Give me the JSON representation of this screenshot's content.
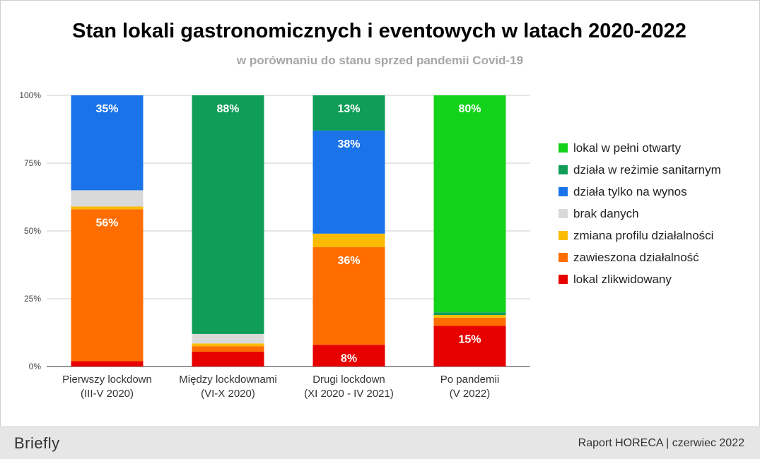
{
  "title": "Stan lokali gastronomicznych i eventowych w latach 2020-2022",
  "subtitle": "w porównaniu do stanu sprzed pandemii Covid-19",
  "footer": {
    "brand": "Briefly",
    "report": "Raport HORECA | czerwiec 2022"
  },
  "chart_data": {
    "type": "bar",
    "stacked": true,
    "title": "Stan lokali gastronomicznych i eventowych w latach 2020-2022",
    "subtitle": "w porównaniu do stanu sprzed pandemii Covid-19",
    "categories": [
      [
        "Pierwszy lockdown",
        "(III-V 2020)"
      ],
      [
        "Między lockdownami",
        "(VI-X 2020)"
      ],
      [
        "Drugi lockdown",
        "(XI 2020 - IV 2021)"
      ],
      [
        "Po pandemii",
        "(V 2022)"
      ]
    ],
    "yticks": [
      "0%",
      "25%",
      "50%",
      "75%",
      "100%"
    ],
    "ylim": [
      0,
      100
    ],
    "grid": true,
    "legend_position": "right",
    "series": [
      {
        "name": "lokal zlikwidowany",
        "color": "#e60000",
        "values": [
          2,
          5.5,
          8,
          15
        ],
        "labels": [
          "",
          "",
          "8%",
          "15%"
        ]
      },
      {
        "name": "zawieszona działalność",
        "color": "#ff6d01",
        "values": [
          56,
          2,
          36,
          3
        ],
        "labels": [
          "56%",
          "",
          "36%",
          ""
        ]
      },
      {
        "name": "zmiana profilu działalności",
        "color": "#fbbc04",
        "values": [
          1,
          1,
          5,
          1
        ],
        "labels": [
          "",
          "",
          "",
          ""
        ]
      },
      {
        "name": "brak danych",
        "color": "#d9d9d9",
        "values": [
          6,
          3.5,
          0,
          0
        ],
        "labels": [
          "",
          "",
          "",
          ""
        ]
      },
      {
        "name": "działa tylko na wynos",
        "color": "#1a73e8",
        "values": [
          35,
          0,
          38,
          0
        ],
        "labels": [
          "35%",
          "",
          "38%",
          ""
        ]
      },
      {
        "name": "działa w reżimie sanitarnym",
        "color": "#0f9d58",
        "values": [
          0,
          88,
          13,
          1
        ],
        "labels": [
          "",
          "88%",
          "13%",
          ""
        ]
      },
      {
        "name": "lokal w pełni otwarty",
        "color": "#12d21a",
        "values": [
          0,
          0,
          0,
          80
        ],
        "labels": [
          "",
          "",
          "",
          "80%"
        ]
      }
    ],
    "legend_order": [
      "lokal w pełni otwarty",
      "działa w reżimie sanitarnym",
      "działa tylko na wynos",
      "brak danych",
      "zmiana profilu działalności",
      "zawieszona działalność",
      "lokal zlikwidowany"
    ]
  }
}
